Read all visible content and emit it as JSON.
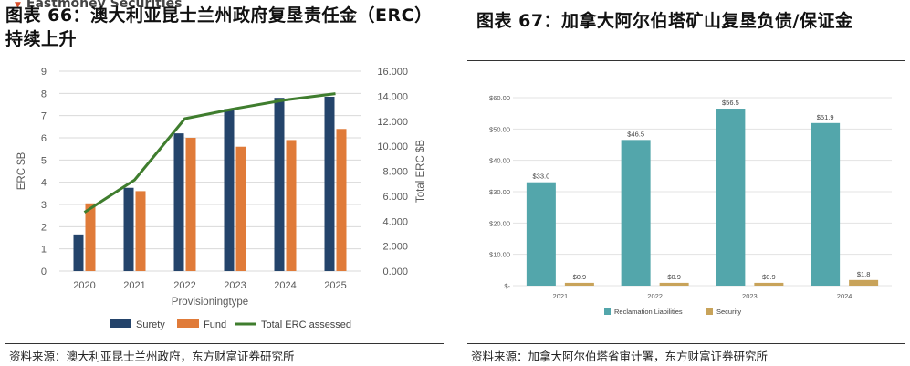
{
  "left": {
    "title": "图表 66：澳大利亚昆士兰州政府复垦责任金（ERC）持续上升",
    "watermark": "Eastmoney Securities",
    "source": "资料来源：澳大利亚昆士兰州政府，东方财富证券研究所"
  },
  "right": {
    "title": "图表 67：加拿大阿尔伯塔矿山复垦负债/保证金",
    "source": "资料来源：加拿大阿尔伯塔省审计署，东方财富证券研究所"
  },
  "chart_data": [
    {
      "type": "bar",
      "title": "",
      "categories": [
        "2020",
        "2021",
        "2022",
        "2023",
        "2024",
        "2025"
      ],
      "xlabel": "Provisioningtype",
      "ylabel": "ERC $B",
      "y2label": "Total ERC $B",
      "ylim": [
        0,
        9
      ],
      "y2lim": [
        0,
        16000
      ],
      "yticks": [
        "0",
        "1",
        "2",
        "3",
        "4",
        "5",
        "6",
        "7",
        "8",
        "9"
      ],
      "y2ticks": [
        "0.000",
        "2.000",
        "4.000",
        "6.000",
        "8.000",
        "10.000",
        "12.000",
        "14.000",
        "16.000"
      ],
      "series": [
        {
          "name": "Surety",
          "type": "bar",
          "axis": "left",
          "values": [
            1.65,
            3.75,
            6.2,
            7.3,
            7.8,
            7.85
          ]
        },
        {
          "name": "Fund",
          "type": "bar",
          "axis": "left",
          "values": [
            3.05,
            3.6,
            6.0,
            5.6,
            5.9,
            6.4
          ]
        },
        {
          "name": "Total ERC assessed",
          "type": "line",
          "axis": "right",
          "values": [
            4700,
            7300,
            12200,
            13000,
            13700,
            14200
          ]
        }
      ],
      "colors": {
        "Surety": "#24446b",
        "Fund": "#e07b39",
        "Total ERC assessed": "#3f7d2e"
      },
      "legend": "bottom",
      "grid": "horizontal"
    },
    {
      "type": "bar",
      "title": "",
      "categories": [
        "2021",
        "2022",
        "2023",
        "2024"
      ],
      "ylim": [
        0,
        60
      ],
      "yticks": [
        "$-",
        "$10.00",
        "$20.00",
        "$30.00",
        "$40.00",
        "$50.00",
        "$60.00"
      ],
      "series": [
        {
          "name": "Reclamation Liabilities",
          "values": [
            33.0,
            46.5,
            56.5,
            51.9
          ],
          "labels": [
            "$33.0",
            "$46.5",
            "$56.5",
            "$51.9"
          ]
        },
        {
          "name": "Security",
          "values": [
            0.9,
            0.9,
            0.9,
            1.8
          ],
          "labels": [
            "$0.9",
            "$0.9",
            "$0.9",
            "$1.8"
          ]
        }
      ],
      "colors": {
        "Reclamation Liabilities": "#53a6ab",
        "Security": "#c8a35a"
      },
      "legend": "bottom",
      "grid": "horizontal"
    }
  ]
}
